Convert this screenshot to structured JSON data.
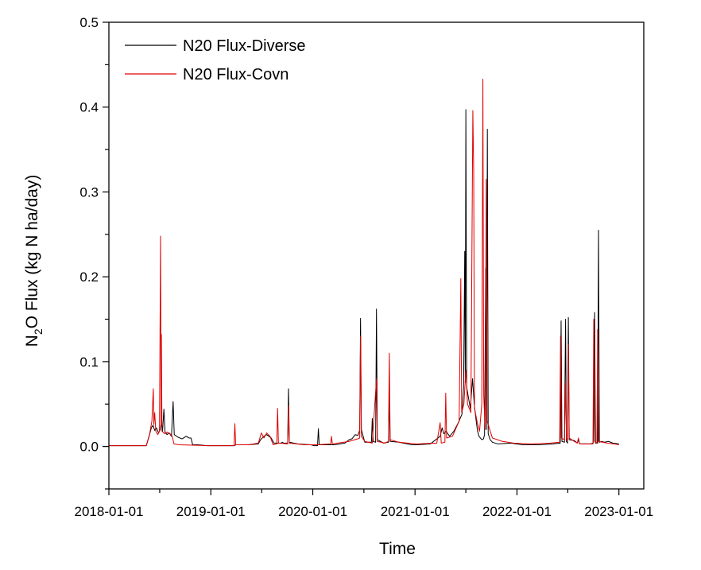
{
  "chart_data": {
    "type": "line",
    "title": "",
    "xlabel": "Time",
    "ylabel": {
      "prefix": "N",
      "sub": "2",
      "suffix": "O Flux (kg N ha/day)"
    },
    "xlim": [
      "2018-01-01",
      "2023-03-31"
    ],
    "ylim": [
      -0.05,
      0.5
    ],
    "x_ticks": [
      "2018-01-01",
      "2019-01-01",
      "2020-01-01",
      "2021-01-01",
      "2022-01-01",
      "2023-01-01"
    ],
    "y_ticks": [
      "0.0",
      "0.1",
      "0.2",
      "0.3",
      "0.4",
      "0.5"
    ],
    "y_tick_values": [
      0.0,
      0.1,
      0.2,
      0.3,
      0.4,
      0.5
    ],
    "y_minor_ticks": [
      -0.05,
      0.05,
      0.15,
      0.25,
      0.35,
      0.45
    ],
    "grid": false,
    "legend_position": "top-left",
    "series": [
      {
        "name": "N20 Flux-Diverse",
        "color": "#000000",
        "points": [
          [
            "2018-01-01",
            0.001
          ],
          [
            "2018-05-15",
            0.001
          ],
          [
            "2018-05-25",
            0.012
          ],
          [
            "2018-06-02",
            0.022
          ],
          [
            "2018-06-08",
            0.025
          ],
          [
            "2018-06-14",
            0.019
          ],
          [
            "2018-06-20",
            0.022
          ],
          [
            "2018-06-28",
            0.016
          ],
          [
            "2018-07-04",
            0.02
          ],
          [
            "2018-07-08",
            0.028
          ],
          [
            "2018-07-12",
            0.018
          ],
          [
            "2018-07-17",
            0.044
          ],
          [
            "2018-07-21",
            0.017
          ],
          [
            "2018-07-28",
            0.014
          ],
          [
            "2018-08-05",
            0.016
          ],
          [
            "2018-08-13",
            0.012
          ],
          [
            "2018-08-19",
            0.053
          ],
          [
            "2018-08-23",
            0.014
          ],
          [
            "2018-09-05",
            0.011
          ],
          [
            "2018-09-20",
            0.009
          ],
          [
            "2018-10-05",
            0.012
          ],
          [
            "2018-10-15",
            0.01
          ],
          [
            "2018-10-22",
            0.01
          ],
          [
            "2018-10-28",
            0.002
          ],
          [
            "2018-11-15",
            0.002
          ],
          [
            "2018-12-20",
            0.001
          ],
          [
            "2019-03-25",
            0.001
          ],
          [
            "2019-04-01",
            0.002
          ],
          [
            "2019-05-15",
            0.002
          ],
          [
            "2019-06-20",
            0.003
          ],
          [
            "2019-06-28",
            0.008
          ],
          [
            "2019-07-10",
            0.012
          ],
          [
            "2019-07-20",
            0.014
          ],
          [
            "2019-08-05",
            0.01
          ],
          [
            "2019-08-15",
            0.004
          ],
          [
            "2019-09-10",
            0.004
          ],
          [
            "2019-09-14",
            0.005
          ],
          [
            "2019-09-18",
            0.004
          ],
          [
            "2019-10-03",
            0.004
          ],
          [
            "2019-10-06",
            0.068
          ],
          [
            "2019-10-09",
            0.005
          ],
          [
            "2019-11-10",
            0.003
          ],
          [
            "2019-12-25",
            0.002
          ],
          [
            "2020-01-05",
            0.001
          ],
          [
            "2020-01-18",
            0.001
          ],
          [
            "2020-01-21",
            0.021
          ],
          [
            "2020-01-24",
            0.002
          ],
          [
            "2020-03-20",
            0.002
          ],
          [
            "2020-04-25",
            0.004
          ],
          [
            "2020-05-10",
            0.008
          ],
          [
            "2020-05-20",
            0.009
          ],
          [
            "2020-06-01",
            0.014
          ],
          [
            "2020-06-10",
            0.013
          ],
          [
            "2020-06-17",
            0.019
          ],
          [
            "2020-06-20",
            0.151
          ],
          [
            "2020-06-23",
            0.02
          ],
          [
            "2020-07-05",
            0.005
          ],
          [
            "2020-07-20",
            0.005
          ],
          [
            "2020-07-29",
            0.005
          ],
          [
            "2020-08-01",
            0.033
          ],
          [
            "2020-08-04",
            0.006
          ],
          [
            "2020-08-13",
            0.005
          ],
          [
            "2020-08-16",
            0.162
          ],
          [
            "2020-08-19",
            0.008
          ],
          [
            "2020-09-10",
            0.004
          ],
          [
            "2020-09-28",
            0.005
          ],
          [
            "2020-10-01",
            0.06
          ],
          [
            "2020-10-04",
            0.006
          ],
          [
            "2020-11-05",
            0.005
          ],
          [
            "2020-12-20",
            0.002
          ],
          [
            "2021-01-10",
            0.002
          ],
          [
            "2021-02-25",
            0.003
          ],
          [
            "2021-04-01",
            0.012
          ],
          [
            "2021-04-08",
            0.022
          ],
          [
            "2021-04-14",
            0.015
          ],
          [
            "2021-04-22",
            0.018
          ],
          [
            "2021-05-05",
            0.012
          ],
          [
            "2021-05-20",
            0.018
          ],
          [
            "2021-06-05",
            0.028
          ],
          [
            "2021-06-18",
            0.038
          ],
          [
            "2021-06-24",
            0.07
          ],
          [
            "2021-06-28",
            0.23
          ],
          [
            "2021-06-30",
            0.075
          ],
          [
            "2021-07-02",
            0.397
          ],
          [
            "2021-07-05",
            0.07
          ],
          [
            "2021-07-10",
            0.06
          ],
          [
            "2021-07-18",
            0.045
          ],
          [
            "2021-07-26",
            0.08
          ],
          [
            "2021-08-01",
            0.05
          ],
          [
            "2021-08-08",
            0.03
          ],
          [
            "2021-08-13",
            0.018
          ],
          [
            "2021-08-18",
            0.012
          ],
          [
            "2021-08-23",
            0.01
          ],
          [
            "2021-08-28",
            0.008
          ],
          [
            "2021-09-03",
            0.009
          ],
          [
            "2021-09-07",
            0.014
          ],
          [
            "2021-09-11",
            0.21
          ],
          [
            "2021-09-14",
            0.02
          ],
          [
            "2021-09-17",
            0.374
          ],
          [
            "2021-09-20",
            0.015
          ],
          [
            "2021-09-27",
            0.008
          ],
          [
            "2021-10-05",
            0.005
          ],
          [
            "2021-10-25",
            0.003
          ],
          [
            "2021-12-10",
            0.004
          ],
          [
            "2022-01-20",
            0.002
          ],
          [
            "2022-03-25",
            0.002
          ],
          [
            "2022-05-10",
            0.003
          ],
          [
            "2022-06-05",
            0.004
          ],
          [
            "2022-06-08",
            0.148
          ],
          [
            "2022-06-11",
            0.006
          ],
          [
            "2022-06-20",
            0.005
          ],
          [
            "2022-06-24",
            0.15
          ],
          [
            "2022-06-27",
            0.006
          ],
          [
            "2022-07-01",
            0.004
          ],
          [
            "2022-07-04",
            0.152
          ],
          [
            "2022-07-07",
            0.008
          ],
          [
            "2022-07-25",
            0.007
          ],
          [
            "2022-08-05",
            0.004
          ],
          [
            "2022-08-10",
            0.008
          ],
          [
            "2022-08-13",
            0.003
          ],
          [
            "2022-09-20",
            0.003
          ],
          [
            "2022-10-01",
            0.004
          ],
          [
            "2022-10-06",
            0.158
          ],
          [
            "2022-10-09",
            0.004
          ],
          [
            "2022-10-17",
            0.004
          ],
          [
            "2022-10-20",
            0.255
          ],
          [
            "2022-10-23",
            0.005
          ],
          [
            "2022-11-01",
            0.006
          ],
          [
            "2022-11-10",
            0.005
          ],
          [
            "2022-11-25",
            0.006
          ],
          [
            "2022-12-10",
            0.004
          ],
          [
            "2023-01-01",
            0.003
          ]
        ]
      },
      {
        "name": "N20 Flux-Covn",
        "color": "#e00000",
        "points": [
          [
            "2018-01-01",
            0.001
          ],
          [
            "2018-05-15",
            0.001
          ],
          [
            "2018-05-27",
            0.015
          ],
          [
            "2018-06-04",
            0.03
          ],
          [
            "2018-06-09",
            0.068
          ],
          [
            "2018-06-11",
            0.026
          ],
          [
            "2018-06-14",
            0.04
          ],
          [
            "2018-06-18",
            0.018
          ],
          [
            "2018-06-25",
            0.014
          ],
          [
            "2018-07-01",
            0.018
          ],
          [
            "2018-07-05",
            0.248
          ],
          [
            "2018-07-07",
            0.025
          ],
          [
            "2018-07-08",
            0.132
          ],
          [
            "2018-07-10",
            0.018
          ],
          [
            "2018-07-20",
            0.015
          ],
          [
            "2018-07-28",
            0.017
          ],
          [
            "2018-08-08",
            0.015
          ],
          [
            "2018-08-16",
            0.012
          ],
          [
            "2018-08-22",
            0.003
          ],
          [
            "2018-09-10",
            0.002
          ],
          [
            "2018-12-20",
            0.001
          ],
          [
            "2019-03-25",
            0.001
          ],
          [
            "2019-03-28",
            0.027
          ],
          [
            "2019-03-31",
            0.002
          ],
          [
            "2019-05-15",
            0.002
          ],
          [
            "2019-06-20",
            0.004
          ],
          [
            "2019-07-01",
            0.016
          ],
          [
            "2019-07-10",
            0.01
          ],
          [
            "2019-07-20",
            0.016
          ],
          [
            "2019-08-01",
            0.012
          ],
          [
            "2019-08-12",
            0.002
          ],
          [
            "2019-08-25",
            0.003
          ],
          [
            "2019-08-28",
            0.045
          ],
          [
            "2019-08-31",
            0.004
          ],
          [
            "2019-10-03",
            0.003
          ],
          [
            "2019-10-06",
            0.048
          ],
          [
            "2019-10-09",
            0.004
          ],
          [
            "2019-12-01",
            0.002
          ],
          [
            "2020-01-15",
            0.002
          ],
          [
            "2020-03-05",
            0.003
          ],
          [
            "2020-03-08",
            0.012
          ],
          [
            "2020-03-11",
            0.003
          ],
          [
            "2020-05-10",
            0.006
          ],
          [
            "2020-06-10",
            0.009
          ],
          [
            "2020-06-17",
            0.01
          ],
          [
            "2020-06-20",
            0.13
          ],
          [
            "2020-06-23",
            0.012
          ],
          [
            "2020-07-05",
            0.006
          ],
          [
            "2020-08-01",
            0.004
          ],
          [
            "2020-08-16",
            0.08
          ],
          [
            "2020-08-19",
            0.006
          ],
          [
            "2020-09-15",
            0.004
          ],
          [
            "2020-09-28",
            0.006
          ],
          [
            "2020-10-01",
            0.11
          ],
          [
            "2020-10-04",
            0.008
          ],
          [
            "2020-11-05",
            0.005
          ],
          [
            "2021-01-05",
            0.003
          ],
          [
            "2021-03-20",
            0.004
          ],
          [
            "2021-04-01",
            0.028
          ],
          [
            "2021-04-05",
            0.004
          ],
          [
            "2021-04-18",
            0.005
          ],
          [
            "2021-04-21",
            0.063
          ],
          [
            "2021-04-24",
            0.01
          ],
          [
            "2021-05-15",
            0.012
          ],
          [
            "2021-06-08",
            0.03
          ],
          [
            "2021-06-14",
            0.198
          ],
          [
            "2021-06-17",
            0.04
          ],
          [
            "2021-06-25",
            0.05
          ],
          [
            "2021-07-02",
            0.09
          ],
          [
            "2021-07-08",
            0.05
          ],
          [
            "2021-07-20",
            0.04
          ],
          [
            "2021-07-27",
            0.396
          ],
          [
            "2021-07-30",
            0.326
          ],
          [
            "2021-08-02",
            0.045
          ],
          [
            "2021-08-12",
            0.028
          ],
          [
            "2021-08-20",
            0.018
          ],
          [
            "2021-08-28",
            0.05
          ],
          [
            "2021-09-01",
            0.433
          ],
          [
            "2021-09-04",
            0.06
          ],
          [
            "2021-09-09",
            0.02
          ],
          [
            "2021-09-13",
            0.315
          ],
          [
            "2021-09-16",
            0.03
          ],
          [
            "2021-10-05",
            0.01
          ],
          [
            "2021-11-10",
            0.006
          ],
          [
            "2021-12-20",
            0.004
          ],
          [
            "2022-02-20",
            0.003
          ],
          [
            "2022-05-01",
            0.004
          ],
          [
            "2022-06-03",
            0.005
          ],
          [
            "2022-06-06",
            0.13
          ],
          [
            "2022-06-09",
            0.01
          ],
          [
            "2022-06-20",
            0.008
          ],
          [
            "2022-06-24",
            0.075
          ],
          [
            "2022-06-27",
            0.01
          ],
          [
            "2022-07-01",
            0.006
          ],
          [
            "2022-07-04",
            0.12
          ],
          [
            "2022-07-07",
            0.01
          ],
          [
            "2022-07-25",
            0.006
          ],
          [
            "2022-08-05",
            0.004
          ],
          [
            "2022-08-09",
            0.01
          ],
          [
            "2022-08-13",
            0.003
          ],
          [
            "2022-09-30",
            0.003
          ],
          [
            "2022-10-03",
            0.15
          ],
          [
            "2022-10-06",
            0.006
          ],
          [
            "2022-10-14",
            0.004
          ],
          [
            "2022-10-17",
            0.138
          ],
          [
            "2022-10-20",
            0.006
          ],
          [
            "2022-11-20",
            0.004
          ],
          [
            "2022-12-15",
            0.003
          ],
          [
            "2023-01-01",
            0.002
          ]
        ]
      }
    ]
  }
}
